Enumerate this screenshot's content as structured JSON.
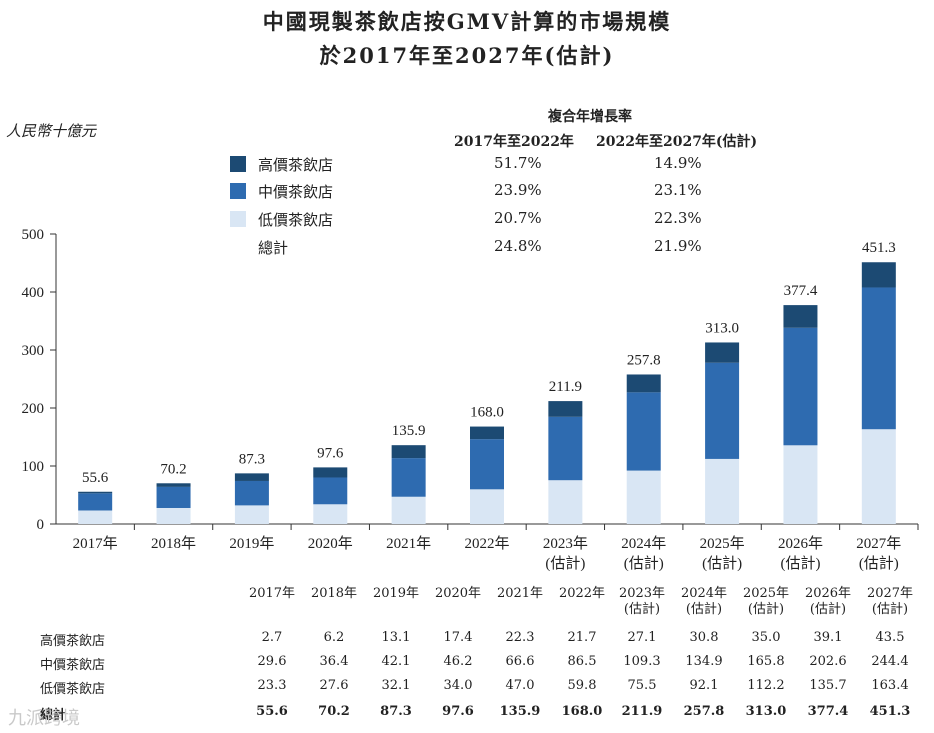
{
  "title_line1": "中國現製茶飲店按GMV計算的市場規模",
  "title_line2": "於2017年至2027年(估計)",
  "unit_label": "人民幣十億元",
  "cagr_header": "複合年增長率",
  "cagr_period1": "2017年至2022年",
  "cagr_period2": "2022年至2027年(估計)",
  "colors": {
    "high": "#1c4a73",
    "mid": "#2e6bb0",
    "low": "#d9e6f4",
    "watermark": "#c9c9c9"
  },
  "legend": [
    {
      "label": "高價茶飲店",
      "cagr1": "51.7%",
      "cagr2": "14.9%",
      "color": "#1c4a73"
    },
    {
      "label": "中價茶飲店",
      "cagr1": "23.9%",
      "cagr2": "23.1%",
      "color": "#2e6bb0"
    },
    {
      "label": "低價茶飲店",
      "cagr1": "20.7%",
      "cagr2": "22.3%",
      "color": "#d9e6f4"
    },
    {
      "label": "總計",
      "cagr1": "24.8%",
      "cagr2": "21.9%",
      "color": ""
    }
  ],
  "chart_data": {
    "type": "bar",
    "stacked": true,
    "categories": [
      "2017年",
      "2018年",
      "2019年",
      "2020年",
      "2021年",
      "2022年",
      "2023年\n(估計)",
      "2024年\n(估計)",
      "2025年\n(估計)",
      "2026年\n(估計)",
      "2027年\n(估計)"
    ],
    "series": [
      {
        "name": "低價茶飲店",
        "values": [
          23.3,
          27.6,
          32.1,
          34.0,
          47.0,
          59.8,
          75.5,
          92.1,
          112.2,
          135.7,
          163.4
        ]
      },
      {
        "name": "中價茶飲店",
        "values": [
          29.6,
          36.4,
          42.1,
          46.2,
          66.6,
          86.5,
          109.3,
          134.9,
          165.8,
          202.6,
          244.4
        ]
      },
      {
        "name": "高價茶飲店",
        "values": [
          2.7,
          6.2,
          13.1,
          17.4,
          22.3,
          21.7,
          27.1,
          30.8,
          35.0,
          39.1,
          43.5
        ]
      }
    ],
    "totals": [
      55.6,
      70.2,
      87.3,
      97.6,
      135.9,
      168.0,
      211.9,
      257.8,
      313.0,
      377.4,
      451.3
    ],
    "total_labels": [
      "55.6",
      "70.2",
      "87.3",
      "97.6",
      "135.9",
      "168.0",
      "211.9",
      "257.8",
      "313.0",
      "377.4",
      "451.3"
    ],
    "ylim": [
      0,
      500
    ],
    "yticks": [
      0,
      100,
      200,
      300,
      400,
      500
    ],
    "ylabel": "人民幣十億元",
    "xlabel": "",
    "legend_position": "top-left"
  },
  "table": {
    "headers": [
      "2017年",
      "2018年",
      "2019年",
      "2020年",
      "2021年",
      "2022年",
      "2023年\n(估計)",
      "2024年\n(估計)",
      "2025年\n(估計)",
      "2026年\n(估計)",
      "2027年\n(估計)"
    ],
    "rows": [
      {
        "label": "高價茶飲店",
        "values": [
          "2.7",
          "6.2",
          "13.1",
          "17.4",
          "22.3",
          "21.7",
          "27.1",
          "30.8",
          "35.0",
          "39.1",
          "43.5"
        ],
        "bold": false
      },
      {
        "label": "中價茶飲店",
        "values": [
          "29.6",
          "36.4",
          "42.1",
          "46.2",
          "66.6",
          "86.5",
          "109.3",
          "134.9",
          "165.8",
          "202.6",
          "244.4"
        ],
        "bold": false
      },
      {
        "label": "低價茶飲店",
        "values": [
          "23.3",
          "27.6",
          "32.1",
          "34.0",
          "47.0",
          "59.8",
          "75.5",
          "92.1",
          "112.2",
          "135.7",
          "163.4"
        ],
        "bold": false
      },
      {
        "label": "總計",
        "values": [
          "55.6",
          "70.2",
          "87.3",
          "97.6",
          "135.9",
          "168.0",
          "211.9",
          "257.8",
          "313.0",
          "377.4",
          "451.3"
        ],
        "bold": true
      }
    ]
  },
  "watermark": "九派跨境"
}
